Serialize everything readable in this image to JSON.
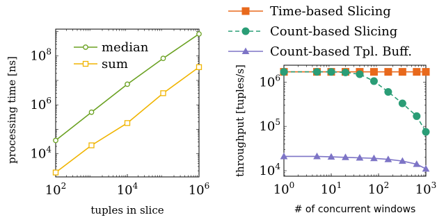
{
  "chart_data": [
    {
      "type": "line",
      "xlabel": "tuples in slice",
      "ylabel": "processing time [ns]",
      "xscale": "log",
      "yscale": "log",
      "x_ticks": [
        "10^2",
        "10^4",
        "10^6"
      ],
      "y_ticks": [
        "10^4",
        "10^6",
        "10^8"
      ],
      "legend_placement": "top-left",
      "grid": false,
      "x": [
        100,
        1000,
        10000,
        100000,
        1000000
      ],
      "series": [
        {
          "name": "median",
          "color": "#6aa121",
          "marker": "circle-open",
          "values": [
            35000,
            500000,
            7000000,
            80000000,
            800000000
          ]
        },
        {
          "name": "sum",
          "color": "#f0b400",
          "marker": "square-open",
          "values": [
            1700,
            22000,
            180000,
            3000000,
            35000000
          ]
        }
      ]
    },
    {
      "type": "line",
      "xlabel": "# of concurrent windows",
      "ylabel": "throughput [tuples/s]",
      "xscale": "log",
      "yscale": "log",
      "x_ticks": [
        "10^0",
        "10^1",
        "10^2",
        "10^3"
      ],
      "y_ticks": [
        "10^4",
        "10^5",
        "10^6"
      ],
      "legend_placement": "top (above plot)",
      "grid": false,
      "series": [
        {
          "name": "Time-based Slicing",
          "color": "#e8691c",
          "marker": "square-filled",
          "dash": "solid",
          "x": [
            1,
            5,
            10,
            20,
            40,
            80,
            160,
            320,
            640,
            1000
          ],
          "values": [
            1700000,
            1700000,
            1700000,
            1700000,
            1700000,
            1700000,
            1700000,
            1700000,
            1700000,
            1700000
          ]
        },
        {
          "name": "Count-based Slicing",
          "color": "#2a9d76",
          "marker": "circle-filled",
          "dash": "dashed",
          "x": [
            1,
            5,
            10,
            20,
            40,
            80,
            160,
            320,
            640,
            1000
          ],
          "values": [
            1700000,
            1700000,
            1700000,
            1650000,
            1500000,
            1050000,
            600000,
            330000,
            170000,
            75000
          ]
        },
        {
          "name": "Count-based Tpl. Buff.",
          "color": "#7d74c6",
          "marker": "triangle-filled",
          "dash": "solid",
          "x": [
            1,
            5,
            10,
            20,
            40,
            80,
            160,
            320,
            640,
            1000
          ],
          "values": [
            21000,
            21000,
            20500,
            20000,
            19500,
            19000,
            18000,
            16500,
            14000,
            11000
          ]
        }
      ]
    }
  ]
}
